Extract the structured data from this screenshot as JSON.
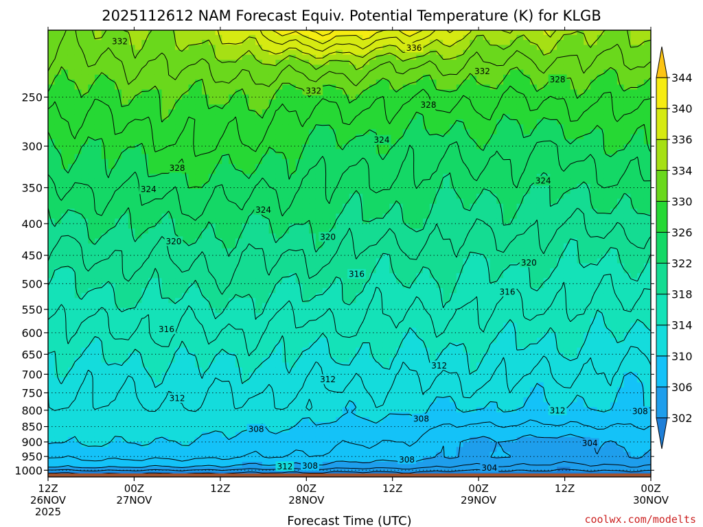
{
  "chart_data": {
    "type": "heatmap",
    "title": "2025112612 NAM Forecast Equiv. Potential Temperature (K) for KLGB",
    "xlabel": "Forecast Time (UTC)",
    "ylabel": "",
    "units": "K",
    "y_axis": {
      "quantity": "pressure (hPa)",
      "scale": "log",
      "inverted": true,
      "range": [
        1025,
        195
      ],
      "ticks": [
        250,
        300,
        350,
        400,
        450,
        500,
        550,
        600,
        650,
        700,
        750,
        800,
        850,
        900,
        950,
        1000
      ]
    },
    "x_axis": {
      "range": [
        "2025-11-26T12:00Z",
        "2025-11-30T00:00Z"
      ],
      "ticks": [
        {
          "time": "2025-11-26T12:00Z",
          "lines": [
            "12Z",
            "26NOV",
            "2025"
          ]
        },
        {
          "time": "2025-11-27T00:00Z",
          "lines": [
            "00Z",
            "27NOV"
          ]
        },
        {
          "time": "2025-11-27T12:00Z",
          "lines": [
            "12Z"
          ]
        },
        {
          "time": "2025-11-28T00:00Z",
          "lines": [
            "00Z",
            "28NOV"
          ]
        },
        {
          "time": "2025-11-28T12:00Z",
          "lines": [
            "12Z"
          ]
        },
        {
          "time": "2025-11-29T00:00Z",
          "lines": [
            "00Z",
            "29NOV"
          ]
        },
        {
          "time": "2025-11-29T12:00Z",
          "lines": [
            "12Z"
          ]
        },
        {
          "time": "2025-11-30T00:00Z",
          "lines": [
            "00Z",
            "30NOV"
          ]
        }
      ]
    },
    "grid": "dotted horizontal lines at pressure ticks",
    "legend": "colorbar on right",
    "colorbar": {
      "labels": [
        302,
        306,
        310,
        314,
        318,
        322,
        326,
        330,
        334,
        336,
        340,
        344
      ],
      "bands": [
        {
          "from": 298,
          "to": 302,
          "color": "#1e7fd8"
        },
        {
          "from": 302,
          "to": 306,
          "color": "#1e9eec"
        },
        {
          "from": 306,
          "to": 310,
          "color": "#14c2f8"
        },
        {
          "from": 310,
          "to": 314,
          "color": "#14dcdc"
        },
        {
          "from": 314,
          "to": 318,
          "color": "#14e2b8"
        },
        {
          "from": 318,
          "to": 322,
          "color": "#14dc92"
        },
        {
          "from": 322,
          "to": 326,
          "color": "#14d866"
        },
        {
          "from": 326,
          "to": 330,
          "color": "#26d834"
        },
        {
          "from": 330,
          "to": 334,
          "color": "#6ad81c"
        },
        {
          "from": 334,
          "to": 336,
          "color": "#a6e014"
        },
        {
          "from": 336,
          "to": 340,
          "color": "#d6ea12"
        },
        {
          "from": 340,
          "to": 344,
          "color": "#f6ec12"
        },
        {
          "from": 344,
          "to": 348,
          "color": "#fcc414"
        }
      ]
    },
    "profiles": [
      {
        "time": "2025-11-26T12:00Z",
        "levels": [
          {
            "p": 1025,
            "theta_e": 300
          },
          {
            "p": 1010,
            "theta_e": 302
          },
          {
            "p": 990,
            "theta_e": 306
          },
          {
            "p": 955,
            "theta_e": 308
          },
          {
            "p": 900,
            "theta_e": 310
          },
          {
            "p": 850,
            "theta_e": 310.6
          },
          {
            "p": 800,
            "theta_e": 311.2
          },
          {
            "p": 750,
            "theta_e": 312
          },
          {
            "p": 700,
            "theta_e": 313
          },
          {
            "p": 650,
            "theta_e": 314.2
          },
          {
            "p": 600,
            "theta_e": 315.5
          },
          {
            "p": 550,
            "theta_e": 316.8
          },
          {
            "p": 500,
            "theta_e": 318.2
          },
          {
            "p": 450,
            "theta_e": 319.6
          },
          {
            "p": 400,
            "theta_e": 321.4
          },
          {
            "p": 350,
            "theta_e": 323.6
          },
          {
            "p": 300,
            "theta_e": 325.8
          },
          {
            "p": 250,
            "theta_e": 329
          },
          {
            "p": 220,
            "theta_e": 331.5
          },
          {
            "p": 195,
            "theta_e": 333
          }
        ]
      },
      {
        "time": "2025-11-27T00:00Z",
        "levels": [
          {
            "p": 1025,
            "theta_e": 300
          },
          {
            "p": 1010,
            "theta_e": 302.5
          },
          {
            "p": 990,
            "theta_e": 306
          },
          {
            "p": 955,
            "theta_e": 308.6
          },
          {
            "p": 900,
            "theta_e": 310.2
          },
          {
            "p": 850,
            "theta_e": 311
          },
          {
            "p": 800,
            "theta_e": 311.6
          },
          {
            "p": 750,
            "theta_e": 312.4
          },
          {
            "p": 700,
            "theta_e": 313.2
          },
          {
            "p": 650,
            "theta_e": 314.4
          },
          {
            "p": 600,
            "theta_e": 315.8
          },
          {
            "p": 550,
            "theta_e": 317
          },
          {
            "p": 500,
            "theta_e": 318.6
          },
          {
            "p": 450,
            "theta_e": 320.2
          },
          {
            "p": 400,
            "theta_e": 322.4
          },
          {
            "p": 350,
            "theta_e": 324.6
          },
          {
            "p": 300,
            "theta_e": 326.8
          },
          {
            "p": 250,
            "theta_e": 329.6
          },
          {
            "p": 220,
            "theta_e": 332
          },
          {
            "p": 195,
            "theta_e": 334
          }
        ]
      },
      {
        "time": "2025-11-27T12:00Z",
        "levels": [
          {
            "p": 1025,
            "theta_e": 300
          },
          {
            "p": 1010,
            "theta_e": 302
          },
          {
            "p": 990,
            "theta_e": 305.5
          },
          {
            "p": 955,
            "theta_e": 308.2
          },
          {
            "p": 900,
            "theta_e": 309.6
          },
          {
            "p": 850,
            "theta_e": 310.6
          },
          {
            "p": 800,
            "theta_e": 311.4
          },
          {
            "p": 750,
            "theta_e": 312.4
          },
          {
            "p": 700,
            "theta_e": 313.4
          },
          {
            "p": 650,
            "theta_e": 314.6
          },
          {
            "p": 600,
            "theta_e": 316
          },
          {
            "p": 550,
            "theta_e": 317.4
          },
          {
            "p": 500,
            "theta_e": 319.2
          },
          {
            "p": 450,
            "theta_e": 320.6
          },
          {
            "p": 400,
            "theta_e": 322.6
          },
          {
            "p": 350,
            "theta_e": 325
          },
          {
            "p": 300,
            "theta_e": 328.2
          },
          {
            "p": 250,
            "theta_e": 330.2
          },
          {
            "p": 220,
            "theta_e": 333
          },
          {
            "p": 195,
            "theta_e": 336
          }
        ]
      },
      {
        "time": "2025-11-28T00:00Z",
        "levels": [
          {
            "p": 1025,
            "theta_e": 300
          },
          {
            "p": 1010,
            "theta_e": 301.5
          },
          {
            "p": 990,
            "theta_e": 305
          },
          {
            "p": 955,
            "theta_e": 307.6
          },
          {
            "p": 900,
            "theta_e": 308.8
          },
          {
            "p": 850,
            "theta_e": 309.8
          },
          {
            "p": 800,
            "theta_e": 310.8
          },
          {
            "p": 750,
            "theta_e": 311.8
          },
          {
            "p": 700,
            "theta_e": 312.8
          },
          {
            "p": 650,
            "theta_e": 314
          },
          {
            "p": 600,
            "theta_e": 315.2
          },
          {
            "p": 550,
            "theta_e": 316.8
          },
          {
            "p": 500,
            "theta_e": 318.4
          },
          {
            "p": 450,
            "theta_e": 320.2
          },
          {
            "p": 400,
            "theta_e": 322.2
          },
          {
            "p": 350,
            "theta_e": 323.8
          },
          {
            "p": 300,
            "theta_e": 325.6
          },
          {
            "p": 250,
            "theta_e": 329.2
          },
          {
            "p": 220,
            "theta_e": 334
          },
          {
            "p": 195,
            "theta_e": 342
          }
        ]
      },
      {
        "time": "2025-11-28T12:00Z",
        "levels": [
          {
            "p": 1025,
            "theta_e": 300
          },
          {
            "p": 1010,
            "theta_e": 301.5
          },
          {
            "p": 990,
            "theta_e": 304.5
          },
          {
            "p": 955,
            "theta_e": 306.8
          },
          {
            "p": 900,
            "theta_e": 308
          },
          {
            "p": 850,
            "theta_e": 309.2
          },
          {
            "p": 800,
            "theta_e": 310.4
          },
          {
            "p": 750,
            "theta_e": 311.4
          },
          {
            "p": 700,
            "theta_e": 312.6
          },
          {
            "p": 650,
            "theta_e": 313.8
          },
          {
            "p": 600,
            "theta_e": 315.2
          },
          {
            "p": 550,
            "theta_e": 316.4
          },
          {
            "p": 500,
            "theta_e": 317.6
          },
          {
            "p": 450,
            "theta_e": 319.2
          },
          {
            "p": 400,
            "theta_e": 321.4
          },
          {
            "p": 350,
            "theta_e": 323.4
          },
          {
            "p": 300,
            "theta_e": 325.2
          },
          {
            "p": 250,
            "theta_e": 328.6
          },
          {
            "p": 220,
            "theta_e": 333
          },
          {
            "p": 195,
            "theta_e": 341
          }
        ]
      },
      {
        "time": "2025-11-29T00:00Z",
        "levels": [
          {
            "p": 1025,
            "theta_e": 300
          },
          {
            "p": 1010,
            "theta_e": 301
          },
          {
            "p": 990,
            "theta_e": 303.5
          },
          {
            "p": 955,
            "theta_e": 305.8
          },
          {
            "p": 900,
            "theta_e": 305.6
          },
          {
            "p": 850,
            "theta_e": 307.6
          },
          {
            "p": 800,
            "theta_e": 309.8
          },
          {
            "p": 750,
            "theta_e": 311.2
          },
          {
            "p": 700,
            "theta_e": 312.4
          },
          {
            "p": 650,
            "theta_e": 313.6
          },
          {
            "p": 600,
            "theta_e": 314.8
          },
          {
            "p": 550,
            "theta_e": 316.2
          },
          {
            "p": 500,
            "theta_e": 317.4
          },
          {
            "p": 450,
            "theta_e": 319
          },
          {
            "p": 400,
            "theta_e": 320.8
          },
          {
            "p": 350,
            "theta_e": 322.6
          },
          {
            "p": 300,
            "theta_e": 324.8
          },
          {
            "p": 250,
            "theta_e": 328.4
          },
          {
            "p": 220,
            "theta_e": 332
          },
          {
            "p": 195,
            "theta_e": 336
          }
        ]
      },
      {
        "time": "2025-11-29T12:00Z",
        "levels": [
          {
            "p": 1025,
            "theta_e": 300
          },
          {
            "p": 1010,
            "theta_e": 301
          },
          {
            "p": 990,
            "theta_e": 303.2
          },
          {
            "p": 955,
            "theta_e": 305.4
          },
          {
            "p": 900,
            "theta_e": 305.2
          },
          {
            "p": 850,
            "theta_e": 307.8
          },
          {
            "p": 800,
            "theta_e": 309.6
          },
          {
            "p": 750,
            "theta_e": 310.8
          },
          {
            "p": 700,
            "theta_e": 312
          },
          {
            "p": 650,
            "theta_e": 313.2
          },
          {
            "p": 600,
            "theta_e": 314.4
          },
          {
            "p": 550,
            "theta_e": 315.6
          },
          {
            "p": 500,
            "theta_e": 317
          },
          {
            "p": 450,
            "theta_e": 318.4
          },
          {
            "p": 400,
            "theta_e": 320.4
          },
          {
            "p": 350,
            "theta_e": 322.4
          },
          {
            "p": 300,
            "theta_e": 324.6
          },
          {
            "p": 250,
            "theta_e": 328.4
          },
          {
            "p": 220,
            "theta_e": 331.6
          },
          {
            "p": 195,
            "theta_e": 335
          }
        ]
      },
      {
        "time": "2025-11-30T00:00Z",
        "levels": [
          {
            "p": 1025,
            "theta_e": 300
          },
          {
            "p": 1010,
            "theta_e": 301
          },
          {
            "p": 990,
            "theta_e": 303.5
          },
          {
            "p": 955,
            "theta_e": 305.8
          },
          {
            "p": 900,
            "theta_e": 306.6
          },
          {
            "p": 850,
            "theta_e": 308
          },
          {
            "p": 800,
            "theta_e": 309.4
          },
          {
            "p": 750,
            "theta_e": 310.2
          },
          {
            "p": 700,
            "theta_e": 311
          },
          {
            "p": 650,
            "theta_e": 312.6
          },
          {
            "p": 600,
            "theta_e": 314
          },
          {
            "p": 550,
            "theta_e": 315.4
          },
          {
            "p": 500,
            "theta_e": 316.6
          },
          {
            "p": 450,
            "theta_e": 318.2
          },
          {
            "p": 400,
            "theta_e": 320.6
          },
          {
            "p": 350,
            "theta_e": 323.4
          },
          {
            "p": 300,
            "theta_e": 326.4
          },
          {
            "p": 250,
            "theta_e": 329.2
          },
          {
            "p": 220,
            "theta_e": 332
          },
          {
            "p": 195,
            "theta_e": 334
          }
        ]
      }
    ],
    "contour_labels": [
      {
        "text": "332",
        "time": "2025-11-26T22:00Z",
        "p": 203
      },
      {
        "text": "336",
        "time": "2025-11-28T15:00Z",
        "p": 208
      },
      {
        "text": "332",
        "time": "2025-11-29T00:30Z",
        "p": 227
      },
      {
        "text": "328",
        "time": "2025-11-29T11:00Z",
        "p": 234
      },
      {
        "text": "332",
        "time": "2025-11-28T01:00Z",
        "p": 244
      },
      {
        "text": "328",
        "time": "2025-11-28T17:00Z",
        "p": 257
      },
      {
        "text": "324",
        "time": "2025-11-28T10:30Z",
        "p": 293
      },
      {
        "text": "328",
        "time": "2025-11-27T06:00Z",
        "p": 325
      },
      {
        "text": "324",
        "time": "2025-11-27T02:00Z",
        "p": 352
      },
      {
        "text": "324",
        "time": "2025-11-29T09:00Z",
        "p": 341
      },
      {
        "text": "324",
        "time": "2025-11-27T18:00Z",
        "p": 380
      },
      {
        "text": "320",
        "time": "2025-11-27T05:30Z",
        "p": 427
      },
      {
        "text": "320",
        "time": "2025-11-28T03:00Z",
        "p": 420
      },
      {
        "text": "316",
        "time": "2025-11-28T07:00Z",
        "p": 482
      },
      {
        "text": "320",
        "time": "2025-11-29T07:00Z",
        "p": 462
      },
      {
        "text": "316",
        "time": "2025-11-29T04:00Z",
        "p": 515
      },
      {
        "text": "316",
        "time": "2025-11-27T04:30Z",
        "p": 592
      },
      {
        "text": "312",
        "time": "2025-11-28T18:30Z",
        "p": 677
      },
      {
        "text": "312",
        "time": "2025-11-28T03:00Z",
        "p": 713
      },
      {
        "text": "312",
        "time": "2025-11-27T06:00Z",
        "p": 765
      },
      {
        "text": "312",
        "time": "2025-11-29T11:00Z",
        "p": 800
      },
      {
        "text": "308",
        "time": "2025-11-29T22:30Z",
        "p": 803
      },
      {
        "text": "308",
        "time": "2025-11-28T16:00Z",
        "p": 825
      },
      {
        "text": "308",
        "time": "2025-11-27T17:00Z",
        "p": 857
      },
      {
        "text": "304",
        "time": "2025-11-29T15:30Z",
        "p": 904
      },
      {
        "text": "308",
        "time": "2025-11-28T14:00Z",
        "p": 960
      },
      {
        "text": "312",
        "time": "2025-11-27T21:00Z",
        "p": 985
      },
      {
        "text": "308",
        "time": "2025-11-28T00:30Z",
        "p": 983
      },
      {
        "text": "304",
        "time": "2025-11-29T01:30Z",
        "p": 990
      }
    ],
    "surface_color": "#a0522d",
    "credit": "coolwx.com/modelts"
  }
}
